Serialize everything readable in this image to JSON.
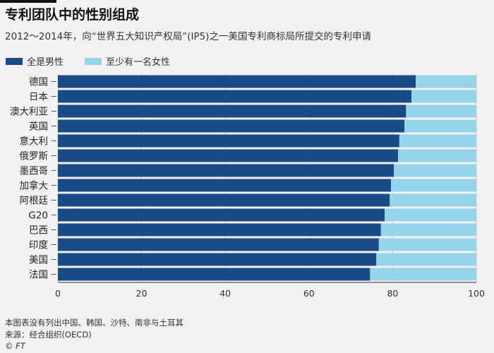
{
  "header": {
    "title": "专利团队中的性别组成",
    "subtitle": "2012～2014年，向“世界五大知识产权局”(IP5)之一美国专利商标局所提交的专利申请"
  },
  "legend": {
    "items": [
      {
        "label": "全是男性",
        "color": "#1a4b86"
      },
      {
        "label": "至少有一名女性",
        "color": "#96d4ea"
      }
    ]
  },
  "chart_data": {
    "type": "bar",
    "orientation": "horizontal",
    "stacked": true,
    "categories": [
      "德国",
      "日本",
      "澳大利亚",
      "英国",
      "意大利",
      "俄罗斯",
      "墨西哥",
      "加拿大",
      "阿根廷",
      "G20",
      "巴西",
      "印度",
      "美国",
      "法国"
    ],
    "series": [
      {
        "name": "全是男性",
        "color": "#1a4b86",
        "values": [
          85.5,
          84.5,
          83.2,
          82.8,
          81.6,
          81.3,
          80.3,
          79.6,
          79.3,
          78.1,
          77.2,
          76.7,
          76.1,
          74.6
        ]
      },
      {
        "name": "至少有一名女性",
        "color": "#96d4ea",
        "values": [
          14.5,
          15.5,
          16.8,
          17.2,
          18.4,
          18.7,
          19.7,
          20.4,
          20.7,
          21.9,
          22.8,
          23.3,
          23.9,
          25.4
        ]
      }
    ],
    "xlim": [
      0,
      100
    ],
    "xticks": [
      "0",
      "20",
      "40",
      "60",
      "80",
      "100"
    ],
    "grid": true,
    "legend_position": "top-left"
  },
  "footer": {
    "note": "本图表没有列出中国、韩国、沙特、南非与土耳其",
    "source": "来源：经合组织(OECD)",
    "credit": "© FT"
  }
}
